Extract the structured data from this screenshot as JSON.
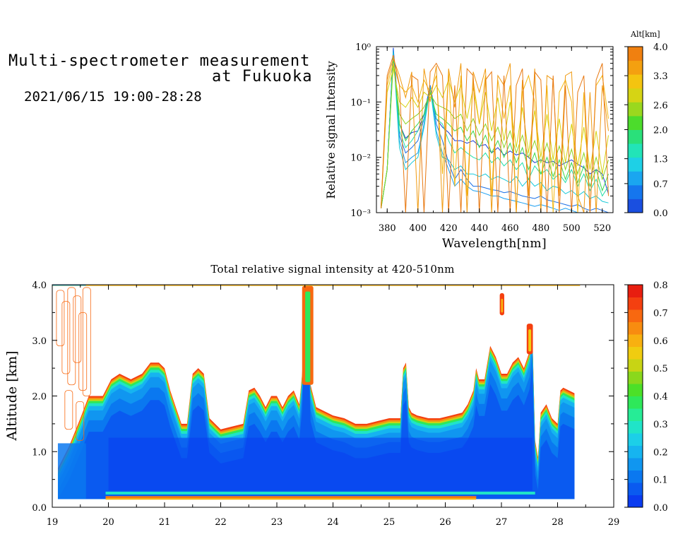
{
  "header": {
    "title_line1": "Multi-spectrometer measurement",
    "title_line2": "at Fukuoka",
    "datetime": "2021/06/15 19:00-28:28"
  },
  "chart_data": [
    {
      "type": "line",
      "title": "",
      "xlabel": "Wavelength[nm]",
      "ylabel": "Relative signal intensity",
      "xlim": [
        373,
        527
      ],
      "ylim": [
        0.001,
        1
      ],
      "yscale": "log",
      "x_ticks": [
        "380",
        "400",
        "420",
        "440",
        "460",
        "480",
        "500",
        "520"
      ],
      "y_ticks": [
        "10⁻³",
        "10⁻²",
        "10⁻¹",
        "10⁰"
      ],
      "colorbar": {
        "label": "Alt[km]",
        "ticks": [
          "0.0",
          "0.7",
          "1.3",
          "2.0",
          "2.6",
          "3.3",
          "4.0"
        ],
        "range": [
          0,
          4
        ],
        "colors": [
          "#1a4fe0",
          "#1576ee",
          "#1aa6f0",
          "#1ed0e6",
          "#22e4b8",
          "#2ae07a",
          "#4cdc2c",
          "#9ad81e",
          "#d6d414",
          "#f4c410",
          "#f4a010",
          "#f08010"
        ]
      },
      "x": [
        376,
        380,
        384,
        388,
        392,
        396,
        400,
        404,
        408,
        412,
        416,
        420,
        424,
        428,
        432,
        436,
        440,
        444,
        448,
        452,
        456,
        460,
        464,
        468,
        472,
        476,
        480,
        484,
        488,
        492,
        496,
        500,
        504,
        508,
        512,
        516,
        520,
        524
      ],
      "series": [
        {
          "color": "#1a3fd6",
          "values": [
            0.0012,
            0.006,
            0.95,
            0.04,
            0.022,
            0.028,
            0.03,
            0.06,
            0.2,
            0.05,
            0.035,
            0.028,
            0.02,
            0.02,
            0.018,
            0.02,
            0.016,
            0.017,
            0.012,
            0.015,
            0.011,
            0.013,
            0.011,
            0.012,
            0.01,
            0.008,
            0.009,
            0.008,
            0.0085,
            0.007,
            0.008,
            0.009,
            0.0075,
            0.0065,
            0.005,
            0.006,
            0.005,
            0.0022
          ]
        },
        {
          "color": "#1a6fe6",
          "values": [
            0.0012,
            0.006,
            0.9,
            0.025,
            0.012,
            0.015,
            0.02,
            0.05,
            0.2,
            0.04,
            0.02,
            0.008,
            0.004,
            0.006,
            0.004,
            0.003,
            0.003,
            0.0028,
            0.0026,
            0.0025,
            0.0023,
            0.0024,
            0.0022,
            0.002,
            0.0019,
            0.0018,
            0.002,
            0.0017,
            0.0016,
            0.0015,
            0.0014,
            0.0013,
            0.0014,
            0.0012,
            0.0011,
            0.0012,
            0.0011,
            0.001
          ]
        },
        {
          "color": "#1a9ef0",
          "values": [
            0.0012,
            0.006,
            0.85,
            0.02,
            0.008,
            0.01,
            0.012,
            0.04,
            0.19,
            0.03,
            0.012,
            0.006,
            0.003,
            0.004,
            0.003,
            0.0025,
            0.0024,
            0.0022,
            0.002,
            0.002,
            0.0018,
            0.0017,
            0.0016,
            0.0015,
            0.0014,
            0.0013,
            0.0014,
            0.0013,
            0.0012,
            0.0011,
            0.0012,
            0.0011,
            0.001,
            0.001,
            0.001,
            0.001,
            0.001,
            0.001
          ]
        },
        {
          "color": "#16c8d8",
          "values": [
            0.0012,
            0.006,
            0.8,
            0.015,
            0.006,
            0.008,
            0.01,
            0.035,
            0.18,
            0.025,
            0.01,
            0.009,
            0.006,
            0.007,
            0.005,
            0.005,
            0.0045,
            0.005,
            0.004,
            0.0045,
            0.004,
            0.0035,
            0.0045,
            0.003,
            0.004,
            0.003,
            0.0035,
            0.0025,
            0.003,
            0.0028,
            0.0022,
            0.0025,
            0.002,
            0.0024,
            0.0018,
            0.002,
            0.0016,
            0.0015
          ]
        },
        {
          "color": "#22dea8",
          "values": [
            0.0012,
            0.006,
            0.7,
            0.03,
            0.015,
            0.02,
            0.03,
            0.05,
            0.16,
            0.05,
            0.04,
            0.02,
            0.012,
            0.015,
            0.012,
            0.01,
            0.009,
            0.012,
            0.008,
            0.01,
            0.007,
            0.009,
            0.006,
            0.008,
            0.004,
            0.007,
            0.005,
            0.006,
            0.004,
            0.005,
            0.0035,
            0.006,
            0.003,
            0.005,
            0.0025,
            0.004,
            0.002,
            0.003
          ]
        },
        {
          "color": "#3cd84a",
          "values": [
            0.0012,
            0.006,
            0.6,
            0.04,
            0.02,
            0.03,
            0.04,
            0.06,
            0.15,
            0.06,
            0.05,
            0.04,
            0.03,
            0.035,
            0.02,
            0.03,
            0.015,
            0.025,
            0.012,
            0.02,
            0.01,
            0.018,
            0.008,
            0.015,
            0.006,
            0.012,
            0.005,
            0.01,
            0.0045,
            0.009,
            0.004,
            0.008,
            0.0035,
            0.007,
            0.003,
            0.006,
            0.0025,
            0.005
          ]
        },
        {
          "color": "#8cd420",
          "values": [
            0.0012,
            0.006,
            0.5,
            0.06,
            0.04,
            0.05,
            0.06,
            0.08,
            0.14,
            0.09,
            0.08,
            0.07,
            0.05,
            0.06,
            0.03,
            0.05,
            0.025,
            0.04,
            0.02,
            0.035,
            0.015,
            0.03,
            0.012,
            0.025,
            0.01,
            0.02,
            0.008,
            0.018,
            0.007,
            0.016,
            0.006,
            0.014,
            0.005,
            0.012,
            0.004,
            0.01,
            0.004,
            0.009
          ]
        },
        {
          "color": "#d8d210",
          "values": [
            0.0012,
            0.15,
            0.4,
            0.1,
            0.08,
            0.12,
            0.08,
            0.15,
            0.12,
            0.2,
            0.12,
            0.25,
            0.1,
            0.2,
            0.05,
            0.18,
            0.04,
            0.15,
            0.03,
            0.12,
            0.02,
            0.1,
            0.015,
            0.08,
            0.012,
            0.07,
            0.01,
            0.06,
            0.009,
            0.05,
            0.008,
            0.04,
            0.007,
            0.035,
            0.006,
            0.03,
            0.005,
            0.025
          ]
        },
        {
          "color": "#f4b812",
          "values": [
            0.0012,
            0.2,
            0.5,
            0.2,
            0.15,
            0.2,
            0.1,
            0.25,
            0.15,
            0.3,
            0.005,
            0.35,
            0.003,
            0.3,
            0.002,
            0.25,
            0.04,
            0.3,
            0.002,
            0.25,
            0.05,
            0.2,
            0.001,
            0.15,
            0.3,
            0.1,
            0.002,
            0.2,
            0.001,
            0.15,
            0.25,
            0.1,
            0.001,
            0.15,
            0.001,
            0.2,
            0.3,
            0.05
          ]
        },
        {
          "color": "#f09a10",
          "values": [
            0.0012,
            0.25,
            0.6,
            0.3,
            0.12,
            0.35,
            0.001,
            0.4,
            0.1,
            0.45,
            0.001,
            0.4,
            0.08,
            0.5,
            0.001,
            0.35,
            0.15,
            0.4,
            0.001,
            0.3,
            0.2,
            0.5,
            0.001,
            0.25,
            0.002,
            0.4,
            0.001,
            0.3,
            0.25,
            0.002,
            0.3,
            0.35,
            0.002,
            0.001,
            0.15,
            0.001,
            0.2,
            0.03
          ]
        },
        {
          "color": "#e87810",
          "values": [
            0.0012,
            0.3,
            0.7,
            0.2,
            0.001,
            0.3,
            0.25,
            0.001,
            0.35,
            0.5,
            0.3,
            0.001,
            0.2,
            0.001,
            0.4,
            0.3,
            0.001,
            0.25,
            0.35,
            0.001,
            0.3,
            0.001,
            0.2,
            0.4,
            0.001,
            0.35,
            0.25,
            0.001,
            0.3,
            0.001,
            0.2,
            0.001,
            0.15,
            0.3,
            0.001,
            0.25,
            0.5,
            0.002
          ]
        }
      ]
    },
    {
      "type": "heatmap",
      "title": "Total relative signal intensity at 420-510nm",
      "xlabel": "",
      "ylabel": "Altitude [km]",
      "xlim": [
        19,
        29
      ],
      "ylim": [
        0,
        4
      ],
      "x_ticks": [
        "19",
        "20",
        "21",
        "22",
        "23",
        "24",
        "25",
        "26",
        "27",
        "28",
        "29"
      ],
      "y_ticks": [
        "0.0",
        "1.0",
        "2.0",
        "3.0",
        "4.0"
      ],
      "colorbar": {
        "label": "",
        "ticks": [
          "0.0",
          "0.1",
          "0.2",
          "0.3",
          "0.4",
          "0.5",
          "0.6",
          "0.7",
          "0.8"
        ],
        "range": [
          0,
          0.8
        ],
        "colors": [
          "#0a3cf0",
          "#0a5af0",
          "#0a78f0",
          "#1096f0",
          "#16b4f0",
          "#1ccfe8",
          "#20e4c8",
          "#26ec96",
          "#2ee85a",
          "#4ce028",
          "#8ad81c",
          "#c8d414",
          "#f0cc10",
          "#f8b010",
          "#f88c10",
          "#f86810",
          "#f44010",
          "#e81e10"
        ]
      },
      "data_start": 19.1,
      "data_end": 28.3,
      "min_altitude": 0.15,
      "low_cloud_bands": [
        0.25,
        0.18
      ],
      "cloud_base_profile": {
        "t": [
          19.1,
          19.3,
          19.5,
          19.65,
          19.9,
          20.05,
          20.2,
          20.4,
          20.6,
          20.75,
          20.9,
          21.0,
          21.1,
          21.2,
          21.3,
          21.4,
          21.5,
          21.6,
          21.7,
          21.8,
          21.9,
          22.0,
          22.2,
          22.4,
          22.5,
          22.6,
          22.7,
          22.8,
          22.9,
          23.0,
          23.1,
          23.2,
          23.3,
          23.4,
          23.45,
          23.5,
          23.55,
          23.6,
          23.7,
          23.8,
          24.0,
          24.2,
          24.4,
          24.6,
          24.8,
          25.0,
          25.1,
          25.2,
          25.25,
          25.3,
          25.35,
          25.4,
          25.5,
          25.7,
          25.9,
          26.1,
          26.3,
          26.4,
          26.5,
          26.55,
          26.6,
          26.7,
          26.8,
          26.9,
          27.0,
          27.1,
          27.2,
          27.3,
          27.4,
          27.5,
          27.55,
          27.6,
          27.65,
          27.7,
          27.8,
          27.9,
          28.0,
          28.05,
          28.1,
          28.2,
          28.3
        ],
        "alt": [
          0.7,
          1.1,
          1.6,
          2.0,
          2.0,
          2.3,
          2.4,
          2.3,
          2.4,
          2.6,
          2.6,
          2.5,
          2.1,
          1.8,
          1.5,
          1.5,
          2.4,
          2.5,
          2.4,
          1.6,
          1.5,
          1.4,
          1.45,
          1.5,
          2.1,
          2.15,
          2.0,
          1.8,
          2.0,
          2.0,
          1.8,
          2.0,
          2.1,
          1.85,
          2.4,
          3.9,
          3.9,
          2.2,
          1.8,
          1.75,
          1.65,
          1.6,
          1.5,
          1.5,
          1.55,
          1.6,
          1.6,
          1.6,
          2.5,
          2.6,
          1.8,
          1.7,
          1.65,
          1.6,
          1.6,
          1.65,
          1.7,
          1.85,
          2.1,
          2.5,
          2.3,
          2.3,
          2.9,
          2.7,
          2.4,
          2.4,
          2.6,
          2.7,
          2.5,
          2.8,
          3.2,
          1.2,
          0.9,
          1.7,
          1.85,
          1.6,
          1.5,
          2.1,
          2.15,
          2.1,
          2.05
        ]
      }
    }
  ]
}
